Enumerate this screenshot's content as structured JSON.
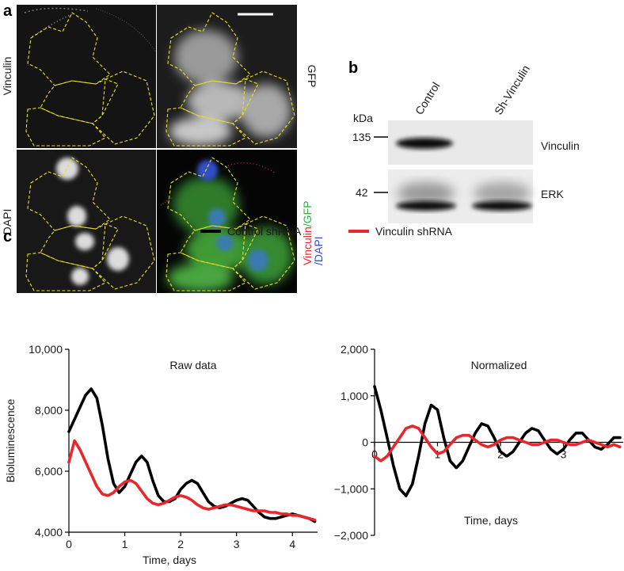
{
  "panel_labels": [
    "a",
    "b",
    "c"
  ],
  "panel_a": {
    "labels": {
      "vinculin": "Vinculin",
      "gfp": "GFP",
      "dapi": "DAPI"
    },
    "merge_label": [
      {
        "text": "Vinculin",
        "color": "#e8262b"
      },
      {
        "text": "/GFP",
        "color": "#2fb34a"
      },
      {
        "text": "/DAPI",
        "color": "#2e4fd8"
      }
    ]
  },
  "panel_b": {
    "lanes": [
      "Control",
      "Sh-Vinculin"
    ],
    "unit": "kDa",
    "markers": [
      135,
      42
    ],
    "bands": [
      "Vinculin",
      "ERK"
    ]
  },
  "chart_data": [
    {
      "type": "line",
      "title": "Raw data",
      "xlabel": "Time, days",
      "ylabel": "Bioluminescence",
      "x": [
        0,
        0.1,
        0.2,
        0.3,
        0.4,
        0.5,
        0.6,
        0.7,
        0.8,
        0.9,
        1.0,
        1.1,
        1.2,
        1.3,
        1.4,
        1.5,
        1.6,
        1.7,
        1.8,
        1.9,
        2.0,
        2.1,
        2.2,
        2.3,
        2.4,
        2.5,
        2.6,
        2.7,
        2.8,
        2.9,
        3.0,
        3.1,
        3.2,
        3.3,
        3.4,
        3.5,
        3.6,
        3.7,
        3.8,
        3.9,
        4.0,
        4.1,
        4.2,
        4.3,
        4.4
      ],
      "series": [
        {
          "name": "Control shRNA",
          "color": "#000000",
          "values": [
            7300,
            7700,
            8100,
            8500,
            8700,
            8400,
            7500,
            6400,
            5600,
            5300,
            5500,
            5900,
            6300,
            6500,
            6300,
            5700,
            5200,
            5000,
            5000,
            5100,
            5400,
            5600,
            5700,
            5600,
            5300,
            5000,
            4850,
            4800,
            4850,
            4950,
            5050,
            5100,
            5050,
            4850,
            4650,
            4500,
            4450,
            4450,
            4500,
            4550,
            4600,
            4550,
            4500,
            4450,
            4350
          ]
        },
        {
          "name": "Vinculin shRNA",
          "color": "#e8262b",
          "values": [
            6300,
            7000,
            6700,
            6300,
            5900,
            5500,
            5250,
            5200,
            5300,
            5500,
            5650,
            5700,
            5600,
            5350,
            5100,
            4950,
            4900,
            4950,
            5050,
            5150,
            5200,
            5150,
            5050,
            4900,
            4800,
            4750,
            4800,
            4850,
            4900,
            4900,
            4850,
            4800,
            4750,
            4700,
            4700,
            4700,
            4650,
            4650,
            4600,
            4600,
            4550,
            4550,
            4500,
            4450,
            4400
          ]
        }
      ],
      "xlim": [
        0,
        4.45
      ],
      "ylim": [
        4000,
        10000
      ],
      "xticks": [
        0,
        1,
        2,
        3,
        4
      ],
      "yticks": [
        {
          "value": 4000,
          "label": "4,000"
        },
        {
          "value": 6000,
          "label": "6,000"
        },
        {
          "value": 8000,
          "label": "8,000"
        },
        {
          "value": 10000,
          "label": "10,000"
        }
      ]
    },
    {
      "type": "line",
      "title": "Normalized",
      "xlabel": "Time, days",
      "x": [
        0,
        0.1,
        0.2,
        0.3,
        0.4,
        0.5,
        0.6,
        0.7,
        0.8,
        0.9,
        1.0,
        1.1,
        1.2,
        1.3,
        1.4,
        1.5,
        1.6,
        1.7,
        1.8,
        1.9,
        2.0,
        2.1,
        2.2,
        2.3,
        2.4,
        2.5,
        2.6,
        2.7,
        2.8,
        2.9,
        3.0,
        3.1,
        3.2,
        3.3,
        3.4,
        3.5,
        3.6,
        3.7,
        3.8,
        3.9
      ],
      "series": [
        {
          "color": "#000000",
          "values": [
            1200,
            700,
            100,
            -500,
            -1000,
            -1150,
            -900,
            -300,
            400,
            800,
            700,
            100,
            -400,
            -550,
            -400,
            -100,
            200,
            400,
            350,
            100,
            -200,
            -300,
            -200,
            0,
            200,
            300,
            250,
            50,
            -150,
            -250,
            -150,
            50,
            200,
            200,
            50,
            -100,
            -150,
            -50,
            100,
            100
          ]
        },
        {
          "color": "#e8262b",
          "values": [
            -300,
            -400,
            -300,
            -100,
            100,
            300,
            350,
            300,
            100,
            -100,
            -250,
            -200,
            -50,
            100,
            150,
            150,
            50,
            -50,
            -100,
            -50,
            50,
            100,
            100,
            50,
            0,
            -50,
            -50,
            0,
            50,
            50,
            0,
            -50,
            -50,
            0,
            50,
            0,
            -50,
            -100,
            -50,
            -100
          ]
        }
      ],
      "xlim": [
        0,
        3.95
      ],
      "ylim": [
        -2000,
        2000
      ],
      "xticks": [
        0,
        1,
        2,
        3
      ],
      "yticks": [
        {
          "value": -2000,
          "label": "−2,000"
        },
        {
          "value": -1000,
          "label": "−1,000"
        },
        0,
        {
          "value": 1000,
          "label": "1,000"
        },
        {
          "value": 2000,
          "label": "2,000"
        }
      ]
    }
  ]
}
